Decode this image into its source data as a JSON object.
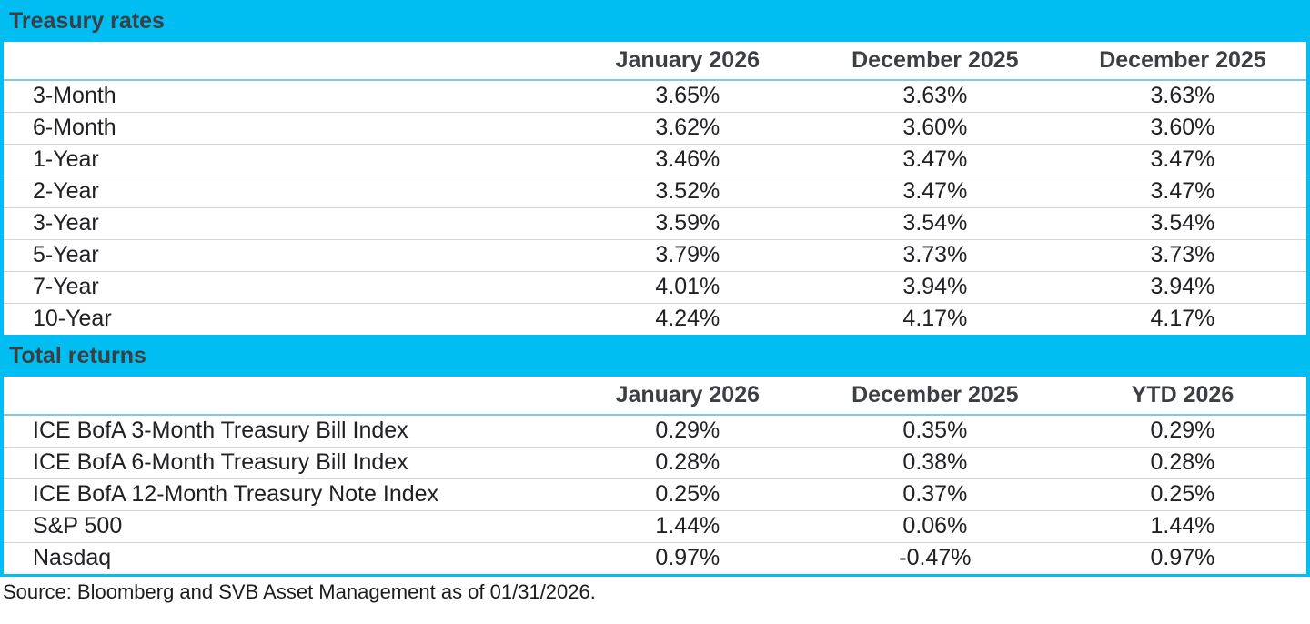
{
  "colors": {
    "accent_cyan": "#00BDF2",
    "header_underline_blue": "#7EC9E5",
    "row_divider_gray": "#D6D6D6",
    "title_text": "#3B3E42",
    "body_text": "#202124"
  },
  "chart_data": [
    {
      "type": "table",
      "title": "Treasury rates",
      "columns": [
        "",
        "January 2026",
        "December 2025",
        "December 2025"
      ],
      "rows": [
        [
          "3-Month",
          "3.65%",
          "3.63%",
          "3.63%"
        ],
        [
          "6-Month",
          "3.62%",
          "3.60%",
          "3.60%"
        ],
        [
          "1-Year",
          "3.46%",
          "3.47%",
          "3.47%"
        ],
        [
          "2-Year",
          "3.52%",
          "3.47%",
          "3.47%"
        ],
        [
          "3-Year",
          "3.59%",
          "3.54%",
          "3.54%"
        ],
        [
          "5-Year",
          "3.79%",
          "3.73%",
          "3.73%"
        ],
        [
          "7-Year",
          "4.01%",
          "3.94%",
          "3.94%"
        ],
        [
          "10-Year",
          "4.24%",
          "4.17%",
          "4.17%"
        ]
      ]
    },
    {
      "type": "table",
      "title": "Total returns",
      "columns": [
        "",
        "January 2026",
        "December 2025",
        "YTD 2026"
      ],
      "rows": [
        [
          "ICE BofA 3-Month Treasury Bill Index",
          "0.29%",
          "0.35%",
          "0.29%"
        ],
        [
          "ICE BofA 6-Month Treasury Bill Index",
          "0.28%",
          "0.38%",
          "0.28%"
        ],
        [
          "ICE BofA 12-Month Treasury Note Index",
          "0.25%",
          "0.37%",
          "0.25%"
        ],
        [
          "S&P 500",
          "1.44%",
          "0.06%",
          "1.44%"
        ],
        [
          "Nasdaq",
          "0.97%",
          "-0.47%",
          "0.97%"
        ]
      ]
    }
  ],
  "source": "Source: Bloomberg and SVB Asset Management as of 01/31/2026."
}
